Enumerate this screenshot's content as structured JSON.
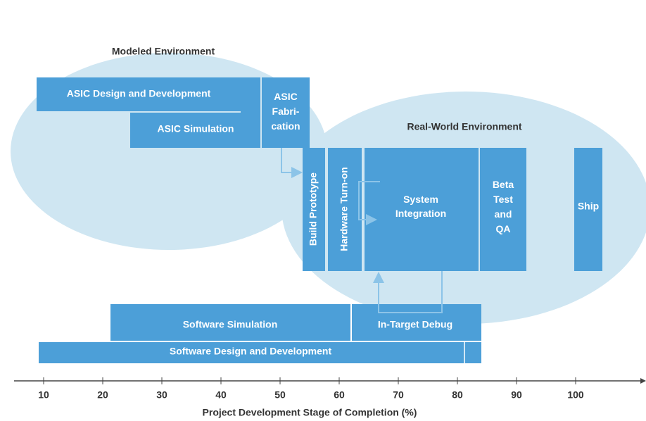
{
  "regions": {
    "modeled": "Modeled Environment",
    "real_world": "Real-World Environment"
  },
  "boxes": {
    "asic_design": "ASIC Design and Development",
    "asic_simulation": "ASIC Simulation",
    "asic_fabrication": [
      "ASIC",
      "Fabri-",
      "cation"
    ],
    "build_prototype": "Build Prototype",
    "hardware_turn_on": "Hardware Turn-on",
    "system_integration": [
      "System",
      "Integration"
    ],
    "beta_test": [
      "Beta",
      "Test",
      "and",
      "QA"
    ],
    "ship": "Ship",
    "software_simulation": "Software Simulation",
    "in_target_debug": "In-Target Debug",
    "software_design": "Software Design and Development"
  },
  "axis": {
    "ticks": [
      10,
      20,
      30,
      40,
      50,
      60,
      70,
      80,
      90,
      100
    ],
    "label": "Project Development Stage of Completion (%)"
  }
}
